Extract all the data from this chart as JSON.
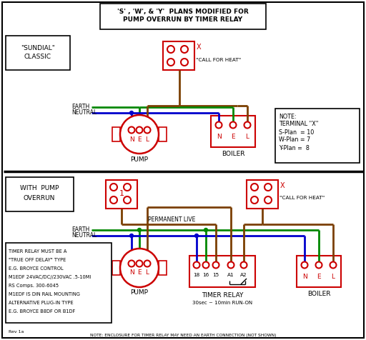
{
  "bg_color": "#ffffff",
  "red": "#cc0000",
  "green": "#008800",
  "blue": "#0000cc",
  "brown": "#7B3F00",
  "black": "#000000",
  "title1": "'S' , 'W', & 'Y'  PLANS MODIFIED FOR",
  "title2": "PUMP OVERRUN BY TIMER RELAY",
  "sundial_label1": "\"SUNDIAL\"",
  "sundial_label2": "CLASSIC",
  "with_pump1": "WITH  PUMP",
  "with_pump2": "OVERRUN",
  "pump_label": "PUMP",
  "boiler_label": "BOILER",
  "timer_relay_label": "TIMER RELAY",
  "timer_run_on": "30sec ~ 10min RUN-ON",
  "earth_label": "EARTH",
  "neutral_label": "NEUTRAL",
  "perm_live_label": "PERMANENT LIVE",
  "call_heat_label": "\"CALL FOR HEAT\"",
  "note_title": "NOTE:",
  "note_terminal": "TERMINAL \"X\"",
  "note_s": "S-Plan  = 10",
  "note_w": "W-Plan = 7",
  "note_y": "Y-Plan =  8",
  "timer_notes": [
    "TIMER RELAY MUST BE A",
    "\"TRUE OFF DELAY\" TYPE",
    "E.G. BROYCE CONTROL",
    "M1EDF 24VAC/DC//230VAC .5-10MI",
    "RS Comps. 300-6045",
    "M1EDF IS DIN RAIL MOUNTING",
    "ALTERNATIVE PLUG-IN TYPE",
    "E.G. BROYCE B8DF OR B1DF"
  ],
  "bottom_note": "NOTE: ENCLOSURE FOR TIMER RELAY MAY NEED AN EARTH CONNECTION (NOT SHOWN)",
  "rev": "Rev 1a"
}
